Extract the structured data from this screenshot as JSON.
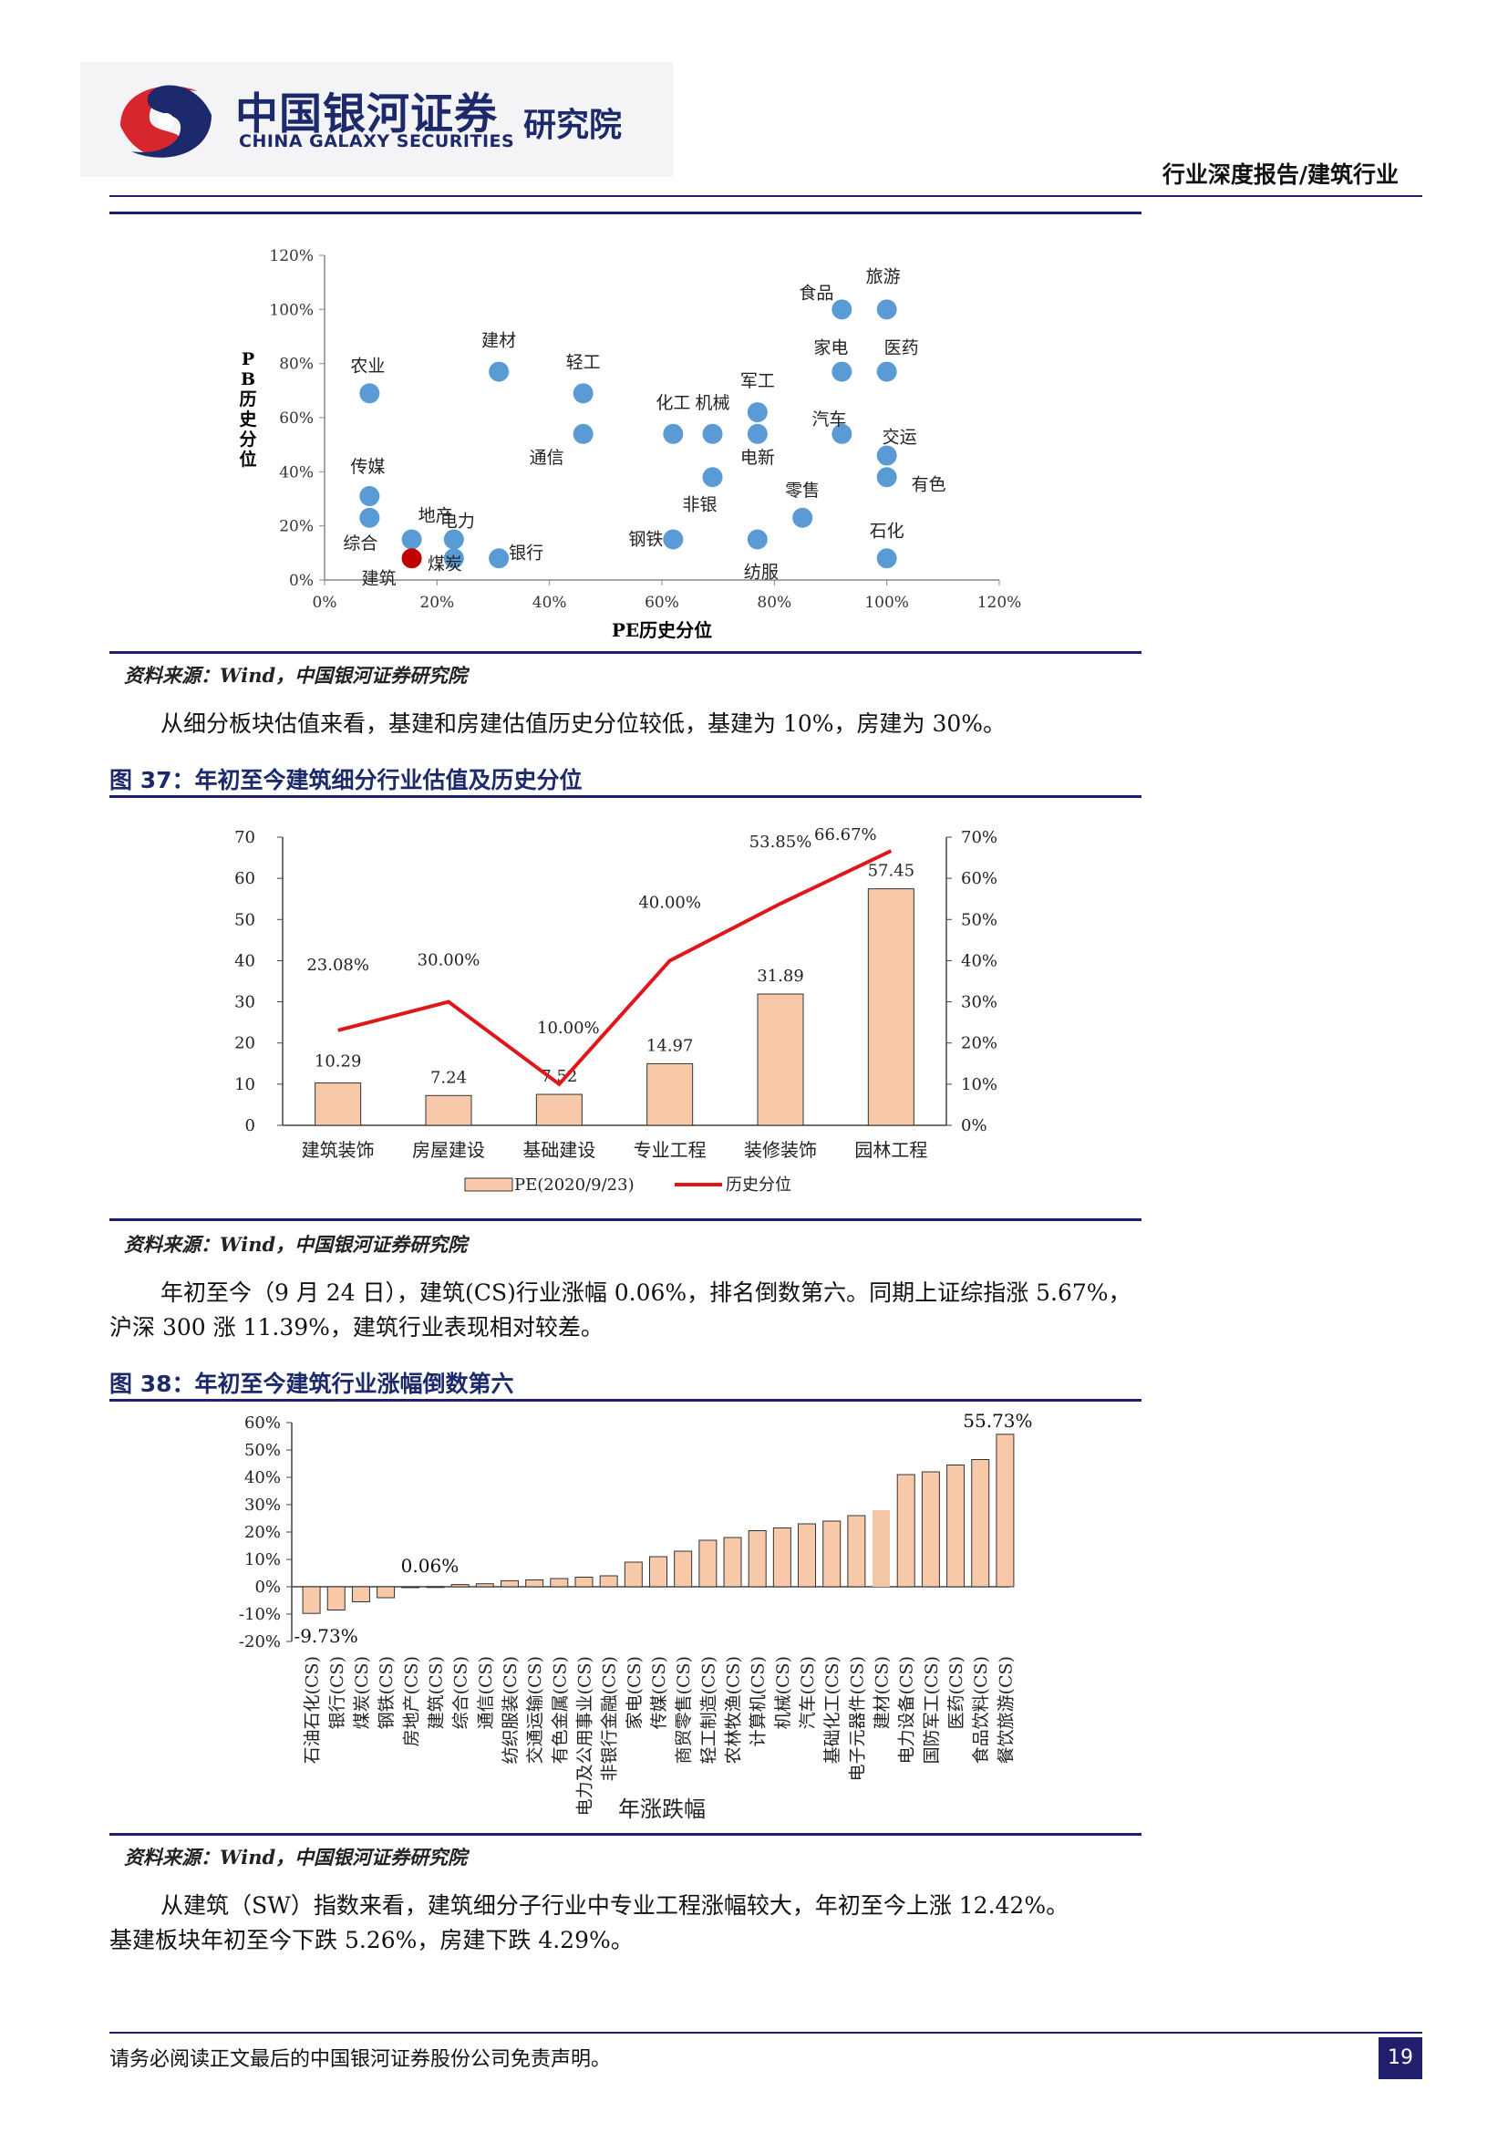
{
  "header": {
    "logo_cn": "中国银河证券",
    "logo_en": "CHINA GALAXY SECURITIES",
    "logo_institute": "研究院",
    "report_type": "行业深度报告/建筑行业"
  },
  "colors": {
    "brand": "#1f1f6e",
    "scatter_point": "#5b9bd5",
    "scatter_highlight": "#c00000",
    "bar_fill": "#f7c9a8",
    "bar_highlight": "#f3c6a6",
    "line": "#e0161b"
  },
  "fig36": {
    "source": "资料来源：Wind，中国银河证券研究院"
  },
  "para1": "从细分板块估值来看，基建和房建估值历史分位较低，基建为 10%，房建为 30%。",
  "fig37": {
    "title": "图 37：年初至今建筑细分行业估值及历史分位",
    "source": "资料来源：Wind，中国银河证券研究院"
  },
  "para2_line1": "年初至今（9 月 24 日），建筑(CS)行业涨幅 0.06%，排名倒数第六。同期上证综指涨 5.67%，",
  "para2_line2": "沪深 300 涨 11.39%，建筑行业表现相对较差。",
  "fig38": {
    "title": "图 38：年初至今建筑行业涨幅倒数第六",
    "source": "资料来源：Wind，中国银河证券研究院"
  },
  "para3_line1": "从建筑（SW）指数来看，建筑细分子行业中专业工程涨幅较大，年初至今上涨 12.42%。",
  "para3_line2": "基建板块年初至今下跌 5.26%，房建下跌 4.29%。",
  "footer": {
    "disclaimer": "请务必阅读正文最后的中国银河证券股份公司免责声明。",
    "page_number": "19"
  },
  "chart_data": [
    {
      "type": "scatter",
      "xlabel": "PE历史分位",
      "ylabel": "PB历史分位",
      "xlim": [
        0,
        1.2
      ],
      "ylim": [
        0,
        1.2
      ],
      "xticks": [
        "0%",
        "20%",
        "40%",
        "60%",
        "80%",
        "100%",
        "120%"
      ],
      "yticks": [
        "0%",
        "20%",
        "40%",
        "60%",
        "80%",
        "100%",
        "120%"
      ],
      "points": [
        {
          "label": "农业",
          "x": 0.08,
          "y": 0.69
        },
        {
          "label": "传媒",
          "x": 0.08,
          "y": 0.31
        },
        {
          "label": "综合",
          "x": 0.08,
          "y": 0.23
        },
        {
          "label": "地产",
          "x": 0.155,
          "y": 0.15
        },
        {
          "label": "建筑",
          "x": 0.155,
          "y": 0.08,
          "highlight": true
        },
        {
          "label": "煤炭",
          "x": 0.23,
          "y": 0.08
        },
        {
          "label": "电力",
          "x": 0.23,
          "y": 0.15
        },
        {
          "label": "建材",
          "x": 0.31,
          "y": 0.77
        },
        {
          "label": "银行",
          "x": 0.31,
          "y": 0.08
        },
        {
          "label": "轻工",
          "x": 0.46,
          "y": 0.69
        },
        {
          "label": "通信",
          "x": 0.46,
          "y": 0.54
        },
        {
          "label": "化工",
          "x": 0.62,
          "y": 0.54
        },
        {
          "label": "钢铁",
          "x": 0.62,
          "y": 0.15
        },
        {
          "label": "机械",
          "x": 0.69,
          "y": 0.54
        },
        {
          "label": "非银",
          "x": 0.69,
          "y": 0.38
        },
        {
          "label": "军工",
          "x": 0.77,
          "y": 0.62
        },
        {
          "label": "电新",
          "x": 0.77,
          "y": 0.54
        },
        {
          "label": "纺服",
          "x": 0.77,
          "y": 0.15
        },
        {
          "label": "零售",
          "x": 0.85,
          "y": 0.23
        },
        {
          "label": "食品",
          "x": 0.92,
          "y": 1.0
        },
        {
          "label": "家电",
          "x": 0.92,
          "y": 0.77
        },
        {
          "label": "汽车",
          "x": 0.92,
          "y": 0.54
        },
        {
          "label": "旅游",
          "x": 1.0,
          "y": 1.0
        },
        {
          "label": "医药",
          "x": 1.0,
          "y": 0.77
        },
        {
          "label": "交运",
          "x": 1.0,
          "y": 0.46
        },
        {
          "label": "有色",
          "x": 1.0,
          "y": 0.38
        },
        {
          "label": "石化",
          "x": 1.0,
          "y": 0.08
        }
      ]
    },
    {
      "type": "bar",
      "categories": [
        "建筑装饰",
        "房屋建设",
        "基础建设",
        "专业工程",
        "装修装饰",
        "园林工程"
      ],
      "series": [
        {
          "name": "PE(2020/9/23)",
          "type": "bar",
          "axis": "left",
          "values": [
            10.29,
            7.24,
            7.52,
            14.97,
            31.89,
            57.45
          ],
          "labels": [
            "10.29",
            "7.24",
            "7.52",
            "14.97",
            "31.89",
            "57.45"
          ]
        },
        {
          "name": "历史分位",
          "type": "line",
          "axis": "right",
          "values": [
            0.2308,
            0.3,
            0.1,
            0.4,
            0.5385,
            0.6667
          ],
          "labels": [
            "23.08%",
            "30.00%",
            "10.00%",
            "40.00%",
            "53.85%",
            "66.67%"
          ]
        }
      ],
      "ylim_left": [
        0,
        70
      ],
      "ylim_right": [
        0,
        0.7
      ],
      "yticks_left": [
        "0",
        "10",
        "20",
        "30",
        "40",
        "50",
        "60",
        "70"
      ],
      "yticks_right": [
        "0%",
        "10%",
        "20%",
        "30%",
        "40%",
        "50%",
        "60%",
        "70%"
      ]
    },
    {
      "type": "bar",
      "xlabel": "年涨跌幅",
      "ylim": [
        -0.2,
        0.6
      ],
      "yticks": [
        "-20%",
        "-10%",
        "0%",
        "10%",
        "20%",
        "30%",
        "40%",
        "50%",
        "60%"
      ],
      "categories": [
        "石油石化(CS)",
        "银行(CS)",
        "煤炭(CS)",
        "钢铁(CS)",
        "房地产(CS)",
        "建筑(CS)",
        "综合(CS)",
        "通信(CS)",
        "纺织服装(CS)",
        "交通运输(CS)",
        "有色金属(CS)",
        "电力及公用事业(CS)",
        "非银行金融(CS)",
        "家电(CS)",
        "传媒(CS)",
        "商贸零售(CS)",
        "轻工制造(CS)",
        "农林牧渔(CS)",
        "计算机(CS)",
        "机械(CS)",
        "汽车(CS)",
        "基础化工(CS)",
        "电子元器件(CS)",
        "建材(CS)",
        "电力设备(CS)",
        "国防军工(CS)",
        "医药(CS)",
        "食品饮料(CS)",
        "餐饮旅游(CS)"
      ],
      "values": [
        -0.0973,
        -0.085,
        -0.055,
        -0.04,
        -0.003,
        0.0006,
        0.008,
        0.011,
        0.022,
        0.025,
        0.03,
        0.035,
        0.04,
        0.09,
        0.11,
        0.13,
        0.17,
        0.18,
        0.205,
        0.215,
        0.23,
        0.24,
        0.26,
        0.28,
        0.41,
        0.42,
        0.445,
        0.465,
        0.5573
      ],
      "highlight_index": 23,
      "data_labels": [
        {
          "index": 0,
          "text": "-9.73%"
        },
        {
          "index": 5,
          "text": "0.06%"
        },
        {
          "index": 28,
          "text": "55.73%"
        }
      ]
    }
  ]
}
